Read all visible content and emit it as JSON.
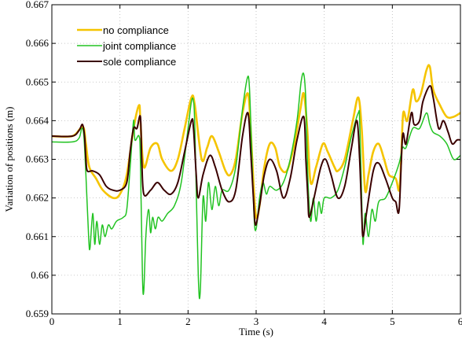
{
  "chart_data": {
    "type": "line",
    "xlabel": "Time (s)",
    "ylabel": "Variation of positions (m)",
    "xlim": [
      0,
      6
    ],
    "ylim": [
      0.659,
      0.667
    ],
    "grid": true,
    "legend_placement": "top-left",
    "x_ticks": [
      0,
      1,
      2,
      3,
      4,
      5,
      6
    ],
    "x_tick_labels": [
      "0",
      "1",
      "2",
      "3",
      "4",
      "5",
      "6"
    ],
    "y_ticks": [
      0.659,
      0.66,
      0.661,
      0.662,
      0.663,
      0.664,
      0.665,
      0.666,
      0.667
    ],
    "y_tick_labels": [
      "0.659",
      "0.66",
      "0.661",
      "0.662",
      "0.663",
      "0.664",
      "0.665",
      "0.666",
      "0.667"
    ],
    "series": [
      {
        "name": "no compliance",
        "color": "#f5c400",
        "width": 2.6,
        "points": [
          [
            0,
            0.6636
          ],
          [
            0.3,
            0.6636
          ],
          [
            0.42,
            0.6638
          ],
          [
            0.47,
            0.6638
          ],
          [
            0.5,
            0.6634
          ],
          [
            0.55,
            0.6628
          ],
          [
            0.65,
            0.6625
          ],
          [
            0.75,
            0.6622
          ],
          [
            0.9,
            0.662
          ],
          [
            1.0,
            0.6621
          ],
          [
            1.1,
            0.6626
          ],
          [
            1.2,
            0.6638
          ],
          [
            1.28,
            0.6644
          ],
          [
            1.3,
            0.664
          ],
          [
            1.35,
            0.6628
          ],
          [
            1.45,
            0.6633
          ],
          [
            1.55,
            0.6634
          ],
          [
            1.62,
            0.663
          ],
          [
            1.75,
            0.6627
          ],
          [
            1.85,
            0.663
          ],
          [
            1.95,
            0.6638
          ],
          [
            2.05,
            0.6646
          ],
          [
            2.1,
            0.6644
          ],
          [
            2.2,
            0.663
          ],
          [
            2.28,
            0.6633
          ],
          [
            2.35,
            0.6636
          ],
          [
            2.45,
            0.6632
          ],
          [
            2.55,
            0.6627
          ],
          [
            2.62,
            0.6626
          ],
          [
            2.7,
            0.663
          ],
          [
            2.8,
            0.6642
          ],
          [
            2.88,
            0.6647
          ],
          [
            2.92,
            0.6638
          ],
          [
            2.96,
            0.6624
          ],
          [
            3.0,
            0.6615
          ],
          [
            3.05,
            0.6618
          ],
          [
            3.12,
            0.6628
          ],
          [
            3.2,
            0.6634
          ],
          [
            3.28,
            0.6633
          ],
          [
            3.35,
            0.6628
          ],
          [
            3.45,
            0.6627
          ],
          [
            3.55,
            0.6633
          ],
          [
            3.65,
            0.6643
          ],
          [
            3.7,
            0.6647
          ],
          [
            3.75,
            0.6638
          ],
          [
            3.8,
            0.6624
          ],
          [
            3.88,
            0.6628
          ],
          [
            3.98,
            0.6634
          ],
          [
            4.05,
            0.6632
          ],
          [
            4.15,
            0.6628
          ],
          [
            4.2,
            0.6627
          ],
          [
            4.3,
            0.663
          ],
          [
            4.42,
            0.664
          ],
          [
            4.5,
            0.6646
          ],
          [
            4.55,
            0.6638
          ],
          [
            4.6,
            0.6622
          ],
          [
            4.65,
            0.6626
          ],
          [
            4.72,
            0.6632
          ],
          [
            4.8,
            0.6634
          ],
          [
            4.88,
            0.663
          ],
          [
            4.95,
            0.6626
          ],
          [
            5.05,
            0.6625
          ],
          [
            5.1,
            0.6622
          ],
          [
            5.13,
            0.663
          ],
          [
            5.16,
            0.6642
          ],
          [
            5.22,
            0.664
          ],
          [
            5.3,
            0.6648
          ],
          [
            5.35,
            0.6645
          ],
          [
            5.42,
            0.6647
          ],
          [
            5.5,
            0.6653
          ],
          [
            5.55,
            0.6654
          ],
          [
            5.6,
            0.6648
          ],
          [
            5.7,
            0.6644
          ],
          [
            5.8,
            0.6641
          ],
          [
            5.9,
            0.6641
          ],
          [
            6.0,
            0.6642
          ]
        ]
      },
      {
        "name": "joint compliance",
        "color": "#22c322",
        "width": 1.5,
        "points": [
          [
            0,
            0.66345
          ],
          [
            0.3,
            0.66345
          ],
          [
            0.4,
            0.66355
          ],
          [
            0.44,
            0.6638
          ],
          [
            0.47,
            0.6636
          ],
          [
            0.5,
            0.6626
          ],
          [
            0.54,
            0.661
          ],
          [
            0.56,
            0.6607
          ],
          [
            0.6,
            0.6616
          ],
          [
            0.63,
            0.6608
          ],
          [
            0.66,
            0.6614
          ],
          [
            0.7,
            0.6608
          ],
          [
            0.74,
            0.6613
          ],
          [
            0.78,
            0.661
          ],
          [
            0.83,
            0.6613
          ],
          [
            0.88,
            0.6612
          ],
          [
            0.95,
            0.6614
          ],
          [
            1.05,
            0.6615
          ],
          [
            1.1,
            0.6617
          ],
          [
            1.15,
            0.6628
          ],
          [
            1.2,
            0.664
          ],
          [
            1.22,
            0.6635
          ],
          [
            1.28,
            0.6636
          ],
          [
            1.3,
            0.663
          ],
          [
            1.33,
            0.66
          ],
          [
            1.35,
            0.6596
          ],
          [
            1.38,
            0.661
          ],
          [
            1.42,
            0.6617
          ],
          [
            1.45,
            0.6611
          ],
          [
            1.48,
            0.6615
          ],
          [
            1.52,
            0.6612
          ],
          [
            1.56,
            0.6615
          ],
          [
            1.62,
            0.6614
          ],
          [
            1.7,
            0.6616
          ],
          [
            1.8,
            0.6618
          ],
          [
            1.9,
            0.6624
          ],
          [
            2.0,
            0.6638
          ],
          [
            2.05,
            0.6645
          ],
          [
            2.08,
            0.6645
          ],
          [
            2.1,
            0.6638
          ],
          [
            2.15,
            0.66
          ],
          [
            2.18,
            0.6596
          ],
          [
            2.22,
            0.662
          ],
          [
            2.26,
            0.6614
          ],
          [
            2.3,
            0.6624
          ],
          [
            2.35,
            0.6617
          ],
          [
            2.4,
            0.6623
          ],
          [
            2.45,
            0.6618
          ],
          [
            2.5,
            0.6622
          ],
          [
            2.6,
            0.6622
          ],
          [
            2.7,
            0.6628
          ],
          [
            2.8,
            0.6643
          ],
          [
            2.87,
            0.6651
          ],
          [
            2.9,
            0.6649
          ],
          [
            2.93,
            0.6635
          ],
          [
            2.97,
            0.6615
          ],
          [
            3.0,
            0.6612
          ],
          [
            3.05,
            0.662
          ],
          [
            3.1,
            0.6624
          ],
          [
            3.15,
            0.6621
          ],
          [
            3.2,
            0.6623
          ],
          [
            3.3,
            0.6622
          ],
          [
            3.4,
            0.6624
          ],
          [
            3.5,
            0.663
          ],
          [
            3.6,
            0.664
          ],
          [
            3.66,
            0.665
          ],
          [
            3.7,
            0.6652
          ],
          [
            3.73,
            0.6645
          ],
          [
            3.76,
            0.6625
          ],
          [
            3.8,
            0.6614
          ],
          [
            3.84,
            0.662
          ],
          [
            3.88,
            0.6614
          ],
          [
            3.92,
            0.6619
          ],
          [
            3.96,
            0.6616
          ],
          [
            4.0,
            0.662
          ],
          [
            4.1,
            0.662
          ],
          [
            4.2,
            0.6622
          ],
          [
            4.3,
            0.6628
          ],
          [
            4.4,
            0.6636
          ],
          [
            4.5,
            0.6642
          ],
          [
            4.52,
            0.664
          ],
          [
            4.55,
            0.662
          ],
          [
            4.57,
            0.6608
          ],
          [
            4.6,
            0.6616
          ],
          [
            4.65,
            0.661
          ],
          [
            4.7,
            0.6617
          ],
          [
            4.75,
            0.6614
          ],
          [
            4.8,
            0.6619
          ],
          [
            4.9,
            0.662
          ],
          [
            5.0,
            0.6624
          ],
          [
            5.1,
            0.6629
          ],
          [
            5.15,
            0.6633
          ],
          [
            5.2,
            0.6633
          ],
          [
            5.3,
            0.6638
          ],
          [
            5.4,
            0.6638
          ],
          [
            5.5,
            0.6642
          ],
          [
            5.55,
            0.6639
          ],
          [
            5.6,
            0.6637
          ],
          [
            5.7,
            0.6636
          ],
          [
            5.8,
            0.6634
          ],
          [
            5.9,
            0.663
          ],
          [
            6.0,
            0.6631
          ]
        ]
      },
      {
        "name": "sole compliance",
        "color": "#3a0000",
        "width": 2.0,
        "points": [
          [
            0,
            0.6636
          ],
          [
            0.3,
            0.6636
          ],
          [
            0.4,
            0.66375
          ],
          [
            0.45,
            0.6639
          ],
          [
            0.48,
            0.6636
          ],
          [
            0.5,
            0.663
          ],
          [
            0.52,
            0.6627
          ],
          [
            0.6,
            0.6627
          ],
          [
            0.7,
            0.6626
          ],
          [
            0.8,
            0.6623
          ],
          [
            0.9,
            0.6622
          ],
          [
            1.0,
            0.6622
          ],
          [
            1.1,
            0.6624
          ],
          [
            1.15,
            0.6632
          ],
          [
            1.2,
            0.6638
          ],
          [
            1.25,
            0.6638
          ],
          [
            1.3,
            0.6641
          ],
          [
            1.32,
            0.663
          ],
          [
            1.35,
            0.6621
          ],
          [
            1.45,
            0.6622
          ],
          [
            1.55,
            0.6624
          ],
          [
            1.65,
            0.6622
          ],
          [
            1.75,
            0.6621
          ],
          [
            1.85,
            0.6624
          ],
          [
            1.95,
            0.6632
          ],
          [
            2.05,
            0.664
          ],
          [
            2.08,
            0.6638
          ],
          [
            2.12,
            0.6626
          ],
          [
            2.15,
            0.662
          ],
          [
            2.22,
            0.6626
          ],
          [
            2.32,
            0.6631
          ],
          [
            2.4,
            0.6628
          ],
          [
            2.5,
            0.6622
          ],
          [
            2.6,
            0.6619
          ],
          [
            2.7,
            0.6622
          ],
          [
            2.8,
            0.6636
          ],
          [
            2.88,
            0.6642
          ],
          [
            2.92,
            0.6632
          ],
          [
            2.96,
            0.662
          ],
          [
            2.99,
            0.6613
          ],
          [
            3.05,
            0.6618
          ],
          [
            3.12,
            0.6626
          ],
          [
            3.2,
            0.663
          ],
          [
            3.3,
            0.6627
          ],
          [
            3.4,
            0.662
          ],
          [
            3.5,
            0.6625
          ],
          [
            3.6,
            0.6635
          ],
          [
            3.7,
            0.6641
          ],
          [
            3.73,
            0.663
          ],
          [
            3.76,
            0.662
          ],
          [
            3.78,
            0.6615
          ],
          [
            3.85,
            0.662
          ],
          [
            3.95,
            0.6628
          ],
          [
            4.02,
            0.663
          ],
          [
            4.1,
            0.6626
          ],
          [
            4.2,
            0.662
          ],
          [
            4.3,
            0.6623
          ],
          [
            4.4,
            0.6633
          ],
          [
            4.48,
            0.664
          ],
          [
            4.52,
            0.663
          ],
          [
            4.55,
            0.6616
          ],
          [
            4.57,
            0.661
          ],
          [
            4.62,
            0.6616
          ],
          [
            4.72,
            0.6627
          ],
          [
            4.8,
            0.6629
          ],
          [
            4.9,
            0.6625
          ],
          [
            5.0,
            0.662
          ],
          [
            5.05,
            0.6619
          ],
          [
            5.1,
            0.6617
          ],
          [
            5.15,
            0.6636
          ],
          [
            5.2,
            0.6634
          ],
          [
            5.28,
            0.6642
          ],
          [
            5.32,
            0.6639
          ],
          [
            5.4,
            0.664
          ],
          [
            5.45,
            0.6645
          ],
          [
            5.55,
            0.6649
          ],
          [
            5.6,
            0.6646
          ],
          [
            5.68,
            0.6638
          ],
          [
            5.75,
            0.664
          ],
          [
            5.82,
            0.6637
          ],
          [
            5.88,
            0.6634
          ],
          [
            5.95,
            0.6635
          ],
          [
            6.0,
            0.6635
          ]
        ]
      }
    ]
  }
}
